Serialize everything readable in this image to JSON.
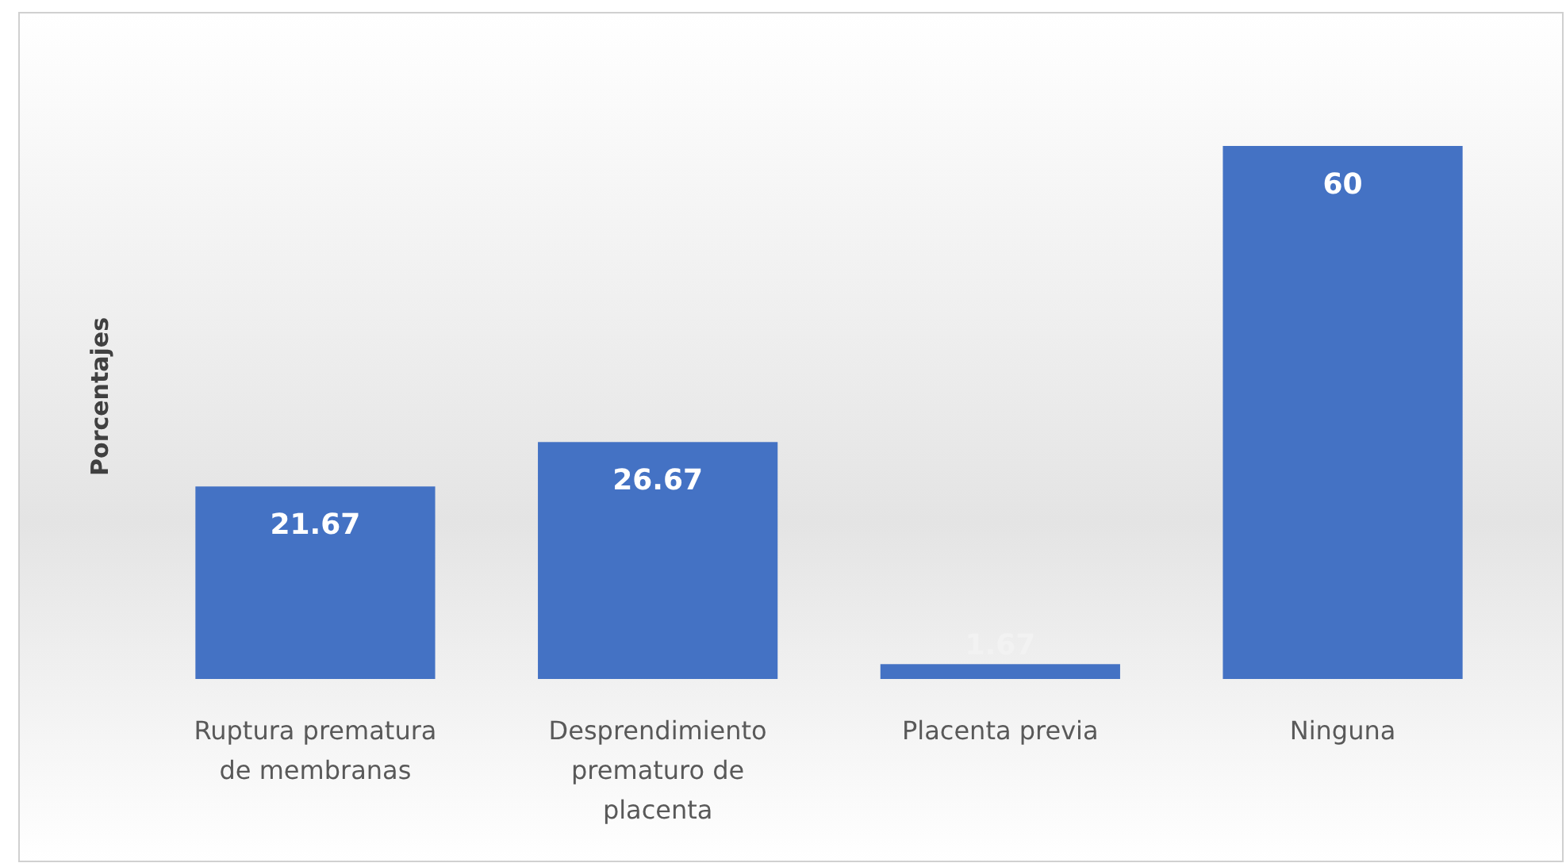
{
  "chart_data": {
    "type": "bar",
    "ylabel": "Porcentajes",
    "categories": [
      "Ruptura prematura de membranas",
      "Desprendimiento prematuro de placenta",
      "Placenta previa",
      "Ninguna"
    ],
    "values": [
      21.67,
      26.67,
      1.67,
      60
    ],
    "color": "#4472c4",
    "data_labels": true
  }
}
